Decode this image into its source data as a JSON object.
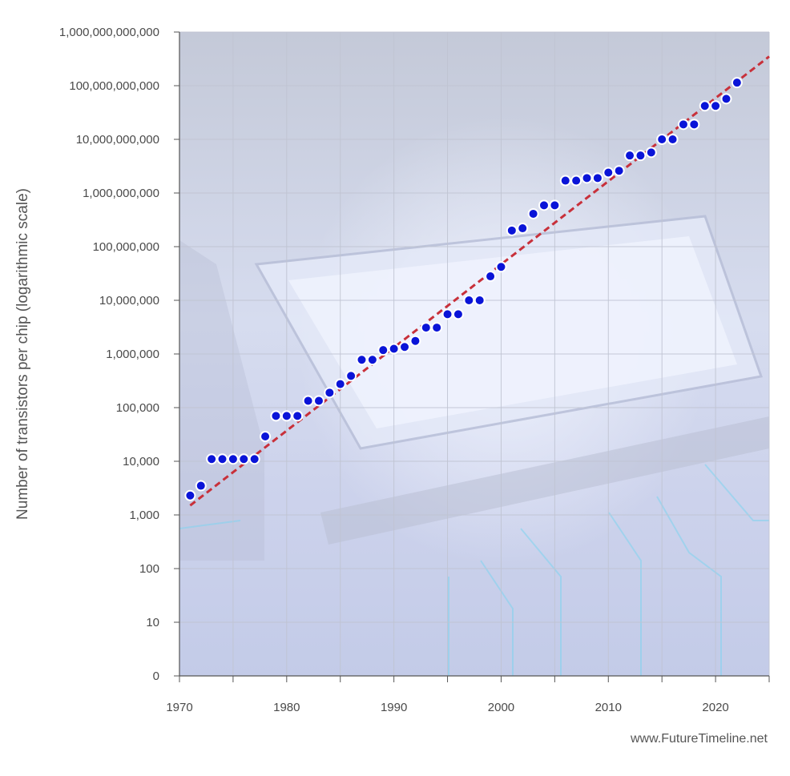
{
  "credit": "www.FutureTimeline.net",
  "colors": {
    "point_fill": "#0a14d8",
    "point_stroke": "#ffffff",
    "trend": "#c8303a",
    "grid": "#c0c4d2",
    "axis": "#555555",
    "background_top": "#c4c9d8",
    "background_bottom": "#c3cbe8"
  },
  "chart_data": {
    "type": "scatter",
    "title": "",
    "xlabel": "",
    "ylabel": "Number of transistors per chip (logarithmic scale)",
    "y_scale": "log",
    "grid": true,
    "xlim": [
      1970,
      2025
    ],
    "x_ticks": [
      1970,
      1980,
      1990,
      2000,
      2010,
      2020
    ],
    "x_minor_ticks": [
      1975,
      1985,
      1995,
      2005,
      2015,
      2025
    ],
    "y_ticks": [
      1,
      10,
      100,
      1000,
      10000,
      100000,
      1000000,
      10000000,
      100000000,
      1000000000,
      10000000000,
      100000000000,
      1000000000000
    ],
    "y_tick_labels": [
      "0",
      "10",
      "100",
      "1,000",
      "10,000",
      "100,000",
      "1,000,000",
      "10,000,000",
      "100,000,000",
      "1,000,000,000",
      "10,000,000,000",
      "100,000,000,000",
      "1,000,000,000,000"
    ],
    "series": [
      {
        "points": [
          [
            1971,
            2300
          ],
          [
            1972,
            3500
          ],
          [
            1973,
            11000
          ],
          [
            1974,
            11000
          ],
          [
            1975,
            11000
          ],
          [
            1976,
            11000
          ],
          [
            1977,
            11000
          ],
          [
            1978,
            29000
          ],
          [
            1979,
            70000
          ],
          [
            1980,
            70000
          ],
          [
            1981,
            70000
          ],
          [
            1982,
            134000
          ],
          [
            1983,
            134000
          ],
          [
            1984,
            190000
          ],
          [
            1985,
            275000
          ],
          [
            1986,
            390000
          ],
          [
            1987,
            780000
          ],
          [
            1988,
            780000
          ],
          [
            1989,
            1180000
          ],
          [
            1990,
            1250000
          ],
          [
            1991,
            1350000
          ],
          [
            1992,
            1750000
          ],
          [
            1993,
            3100000
          ],
          [
            1994,
            3100000
          ],
          [
            1995,
            5500000
          ],
          [
            1996,
            5500000
          ],
          [
            1997,
            10000000
          ],
          [
            1998,
            10000000
          ],
          [
            1999,
            28000000
          ],
          [
            2000,
            42000000
          ],
          [
            2001,
            200000000
          ],
          [
            2002,
            220000000
          ],
          [
            2003,
            410000000
          ],
          [
            2004,
            590000000
          ],
          [
            2005,
            590000000
          ],
          [
            2006,
            1700000000
          ],
          [
            2007,
            1700000000
          ],
          [
            2008,
            1900000000
          ],
          [
            2009,
            1900000000
          ],
          [
            2010,
            2400000000
          ],
          [
            2011,
            2600000000
          ],
          [
            2012,
            5000000000
          ],
          [
            2013,
            5000000000
          ],
          [
            2014,
            5700000000
          ],
          [
            2015,
            10000000000
          ],
          [
            2016,
            10000000000
          ],
          [
            2017,
            19000000000
          ],
          [
            2018,
            19000000000
          ],
          [
            2019,
            42000000000
          ],
          [
            2020,
            42000000000
          ],
          [
            2021,
            57000000000
          ],
          [
            2022,
            114000000000
          ]
        ]
      }
    ],
    "trend_line": {
      "style": "dashed",
      "from": [
        1971,
        1500
      ],
      "to": [
        2025,
        350000000000
      ]
    }
  }
}
